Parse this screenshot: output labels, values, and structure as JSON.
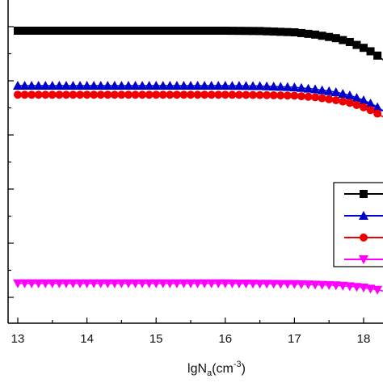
{
  "chart_data": {
    "type": "line",
    "xlabel": "lgN",
    "xlabel_sub": "a",
    "xlabel_unit_prefix": "(cm",
    "xlabel_unit_sup": "-3",
    "xlabel_unit_suffix": ")",
    "xlim": [
      12.95,
      18.3
    ],
    "ylim": [
      0,
      1
    ],
    "x_ticks": [
      "13",
      "14",
      "15",
      "16",
      "17",
      "18"
    ],
    "grid": false,
    "legend_placement": "right",
    "series": [
      {
        "marker": "square",
        "color": "#000000",
        "x": [
          13,
          14,
          15,
          16,
          16.5,
          17,
          17.3,
          17.6,
          17.8,
          18.0,
          18.15,
          18.3
        ],
        "y": [
          0.905,
          0.905,
          0.905,
          0.905,
          0.904,
          0.9,
          0.893,
          0.882,
          0.87,
          0.852,
          0.836,
          0.812
        ]
      },
      {
        "marker": "triangle-up",
        "color": "#0000cc",
        "x": [
          13,
          14,
          15,
          16,
          16.5,
          17,
          17.3,
          17.6,
          17.8,
          18.0,
          18.15,
          18.3
        ],
        "y": [
          0.735,
          0.735,
          0.735,
          0.735,
          0.734,
          0.73,
          0.724,
          0.715,
          0.705,
          0.69,
          0.675,
          0.655
        ]
      },
      {
        "marker": "circle",
        "color": "#ee0000",
        "x": [
          13,
          14,
          15,
          16,
          16.5,
          17,
          17.3,
          17.6,
          17.8,
          18.0,
          18.15,
          18.3
        ],
        "y": [
          0.707,
          0.707,
          0.707,
          0.707,
          0.706,
          0.704,
          0.699,
          0.69,
          0.682,
          0.668,
          0.655,
          0.636
        ]
      },
      {
        "marker": "triangle-down",
        "color": "#ff00ff",
        "x": [
          13,
          14,
          15,
          16,
          16.5,
          17,
          17.3,
          17.6,
          17.8,
          18.0,
          18.15,
          18.3
        ],
        "y": [
          0.123,
          0.123,
          0.123,
          0.123,
          0.122,
          0.121,
          0.119,
          0.117,
          0.114,
          0.11,
          0.105,
          0.099
        ]
      }
    ]
  }
}
